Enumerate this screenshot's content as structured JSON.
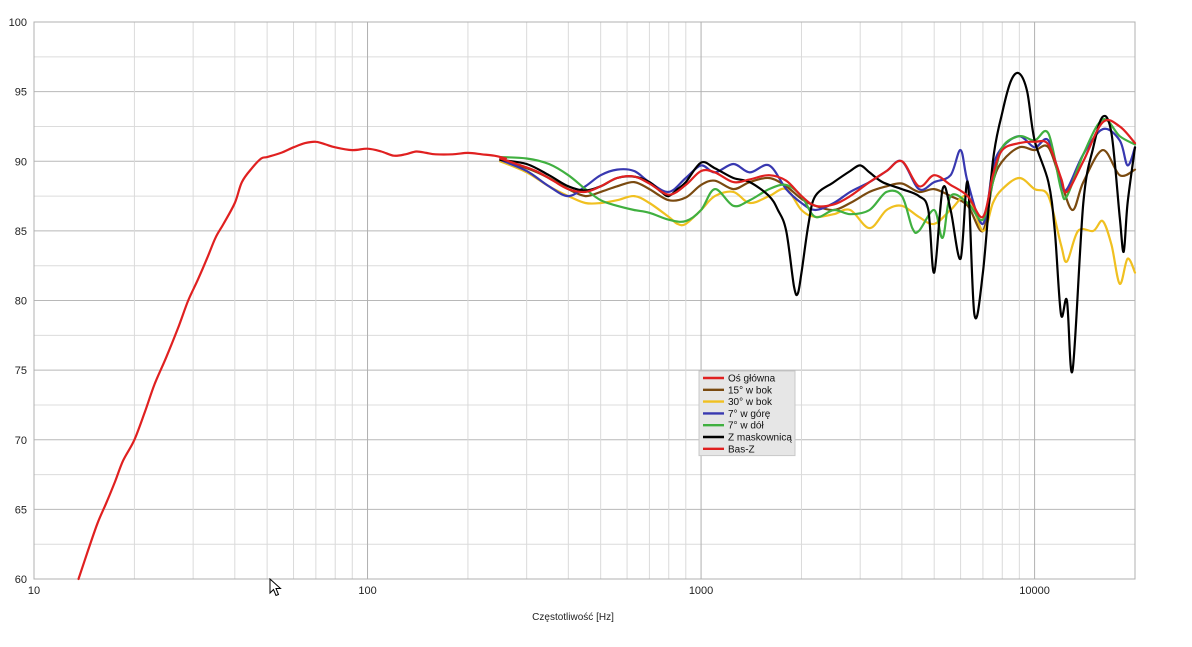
{
  "chart_data": {
    "type": "line",
    "title": "",
    "xlabel": "Częstotliwość [Hz]",
    "ylabel": "",
    "xscale": "log",
    "xlim": [
      10,
      20000
    ],
    "ylim": [
      60,
      100
    ],
    "grid": true,
    "legend_position": "center-right",
    "x_tick_labels": [
      "10",
      "100",
      "1000",
      "10000"
    ],
    "y_tick_labels": [
      "60",
      "65",
      "70",
      "75",
      "80",
      "85",
      "90",
      "95",
      "100"
    ],
    "series": [
      {
        "name": "Oś główna",
        "color": "#e02020",
        "x": [
          250,
          280,
          320,
          360,
          400,
          450,
          500,
          560,
          630,
          700,
          800,
          900,
          1000,
          1100,
          1250,
          1400,
          1600,
          1800,
          2000,
          2200,
          2500,
          2800,
          3200,
          3600,
          4000,
          4500,
          5000,
          5600,
          6300,
          7000,
          7500,
          8000,
          9000,
          10000,
          11000,
          12000,
          12500,
          14000,
          16000,
          18000,
          20000
        ],
        "y": [
          90.2,
          89.8,
          89.3,
          88.6,
          88.0,
          87.8,
          88.2,
          88.8,
          88.9,
          88.4,
          87.6,
          88.3,
          89.3,
          89.2,
          88.5,
          88.7,
          89.0,
          88.6,
          87.5,
          86.8,
          86.9,
          87.5,
          88.5,
          89.3,
          90.0,
          88.2,
          89.0,
          88.3,
          87.5,
          86.0,
          89.0,
          90.8,
          91.3,
          91.4,
          91.2,
          88.8,
          87.8,
          90.0,
          92.8,
          92.5,
          91.3
        ]
      },
      {
        "name": "15° w bok",
        "color": "#7a4a10",
        "x": [
          250,
          300,
          350,
          400,
          450,
          500,
          560,
          630,
          700,
          800,
          900,
          1000,
          1100,
          1250,
          1400,
          1600,
          1800,
          2000,
          2200,
          2500,
          2800,
          3200,
          3600,
          4000,
          4500,
          5000,
          5600,
          6300,
          7000,
          7500,
          8000,
          9000,
          10000,
          11000,
          12000,
          13000,
          14000,
          16000,
          18000,
          20000
        ],
        "y": [
          90.0,
          89.5,
          88.8,
          88.0,
          87.5,
          87.8,
          88.2,
          88.5,
          88.0,
          87.2,
          87.4,
          88.3,
          88.6,
          88.0,
          88.5,
          88.8,
          88.2,
          87.3,
          86.8,
          86.5,
          87.0,
          87.8,
          88.2,
          88.4,
          87.8,
          88.0,
          87.5,
          86.8,
          85.0,
          88.5,
          90.0,
          91.0,
          90.8,
          91.0,
          88.5,
          86.5,
          88.5,
          90.8,
          89.0,
          89.4
        ]
      },
      {
        "name": "30° w bok",
        "color": "#f0c020",
        "x": [
          250,
          300,
          350,
          400,
          450,
          500,
          560,
          630,
          700,
          800,
          850,
          900,
          1000,
          1100,
          1250,
          1400,
          1600,
          1800,
          2000,
          2200,
          2500,
          2800,
          3200,
          3600,
          4000,
          4500,
          5000,
          5600,
          6300,
          7000,
          7500,
          8000,
          9000,
          10000,
          11000,
          12000,
          12500,
          13500,
          15000,
          16000,
          17000,
          18000,
          19000,
          20000
        ],
        "y": [
          90.0,
          89.2,
          88.2,
          87.5,
          87.0,
          87.0,
          87.2,
          87.5,
          87.0,
          86.0,
          85.5,
          85.5,
          86.5,
          87.5,
          87.8,
          87.0,
          87.5,
          88.0,
          86.5,
          86.0,
          86.2,
          86.5,
          85.2,
          86.5,
          86.8,
          86.0,
          85.5,
          86.5,
          87.5,
          85.0,
          87.0,
          88.0,
          88.8,
          88.0,
          87.5,
          84.0,
          82.8,
          85.0,
          85.0,
          85.7,
          84.0,
          81.2,
          83.0,
          82.0
        ]
      },
      {
        "name": "7° w górę",
        "color": "#3838b0",
        "x": [
          250,
          300,
          350,
          400,
          450,
          500,
          560,
          630,
          700,
          800,
          900,
          1000,
          1100,
          1250,
          1400,
          1600,
          1800,
          2000,
          2200,
          2500,
          2800,
          3200,
          3600,
          4000,
          4500,
          5000,
          5600,
          6000,
          6300,
          7000,
          7500,
          8000,
          9000,
          10000,
          11000,
          12000,
          12500,
          14000,
          16000,
          18000,
          19000,
          20000
        ],
        "y": [
          90.1,
          89.3,
          88.2,
          87.5,
          88.2,
          89.0,
          89.4,
          89.3,
          88.5,
          87.8,
          88.8,
          89.7,
          89.2,
          89.8,
          89.2,
          89.7,
          88.0,
          87.0,
          86.5,
          87.0,
          87.8,
          88.5,
          89.3,
          90.0,
          88.0,
          88.5,
          89.0,
          90.8,
          88.5,
          85.5,
          89.5,
          91.0,
          91.8,
          91.0,
          91.5,
          88.5,
          88.0,
          90.5,
          92.3,
          91.5,
          89.7,
          91.0
        ]
      },
      {
        "name": "7° w dół",
        "color": "#40b040",
        "x": [
          250,
          300,
          350,
          400,
          450,
          500,
          560,
          630,
          700,
          800,
          900,
          1000,
          1100,
          1250,
          1400,
          1600,
          1800,
          2000,
          2200,
          2500,
          2800,
          3200,
          3600,
          4000,
          4300,
          4500,
          5000,
          5300,
          5600,
          6300,
          7000,
          7500,
          8000,
          9000,
          10000,
          11000,
          12000,
          12500,
          14000,
          16000,
          18000,
          20000
        ],
        "y": [
          90.3,
          90.2,
          89.8,
          89.0,
          88.0,
          87.2,
          86.8,
          86.5,
          86.3,
          85.8,
          85.7,
          86.5,
          88.0,
          86.8,
          87.2,
          88.0,
          88.3,
          87.5,
          86.0,
          86.5,
          86.2,
          86.5,
          87.8,
          87.5,
          85.2,
          85.0,
          86.5,
          84.5,
          87.5,
          87.0,
          85.8,
          88.5,
          91.0,
          91.8,
          91.5,
          92.0,
          88.0,
          87.5,
          90.5,
          93.0,
          91.8,
          91.2
        ]
      },
      {
        "name": "Z maskownicą",
        "color": "#000000",
        "x": [
          250,
          300,
          350,
          400,
          450,
          500,
          560,
          630,
          700,
          760,
          800,
          850,
          900,
          1000,
          1100,
          1250,
          1400,
          1600,
          1700,
          1800,
          1900,
          1950,
          2000,
          2100,
          2200,
          2500,
          2800,
          3000,
          3200,
          3500,
          4000,
          4500,
          4800,
          5000,
          5300,
          5600,
          6000,
          6300,
          6600,
          7000,
          7500,
          8000,
          8500,
          9000,
          9500,
          10000,
          11000,
          11500,
          12000,
          12500,
          13000,
          14000,
          15000,
          16000,
          17000,
          18000,
          18500,
          19000,
          20000
        ],
        "y": [
          90.1,
          89.8,
          89.0,
          88.2,
          87.9,
          88.2,
          88.8,
          88.9,
          88.5,
          87.8,
          87.5,
          88.0,
          88.5,
          89.9,
          89.5,
          88.8,
          88.5,
          87.5,
          86.5,
          85.0,
          81.0,
          80.5,
          82.0,
          85.5,
          87.5,
          88.5,
          89.3,
          89.7,
          89.2,
          88.5,
          88.0,
          87.5,
          86.5,
          82.0,
          88.0,
          86.5,
          83.0,
          88.5,
          79.0,
          82.0,
          90.0,
          93.5,
          95.8,
          96.3,
          95.0,
          91.5,
          88.5,
          85.0,
          79.0,
          80.0,
          75.0,
          87.0,
          91.0,
          93.2,
          92.0,
          86.0,
          83.5,
          87.0,
          91.0
        ]
      },
      {
        "name": "Bas-Z",
        "color": "#e02020",
        "x": [
          13.6,
          14.5,
          15.5,
          16.5,
          17.5,
          18.5,
          20,
          21.5,
          23,
          25,
          27,
          29,
          31,
          33,
          35,
          37,
          40,
          42,
          45,
          48,
          50,
          55,
          60,
          65,
          70,
          75,
          80,
          90,
          100,
          110,
          120,
          130,
          140,
          150,
          160,
          180,
          200,
          220,
          240,
          260
        ],
        "y": [
          60.0,
          62.0,
          64.0,
          65.5,
          67.0,
          68.5,
          70.0,
          72.0,
          74.0,
          76.0,
          78.0,
          80.0,
          81.5,
          83.0,
          84.5,
          85.5,
          87.0,
          88.5,
          89.5,
          90.2,
          90.3,
          90.6,
          91.0,
          91.3,
          91.4,
          91.2,
          91.0,
          90.8,
          90.9,
          90.7,
          90.4,
          90.5,
          90.7,
          90.6,
          90.5,
          90.5,
          90.6,
          90.5,
          90.4,
          90.2
        ]
      }
    ]
  }
}
